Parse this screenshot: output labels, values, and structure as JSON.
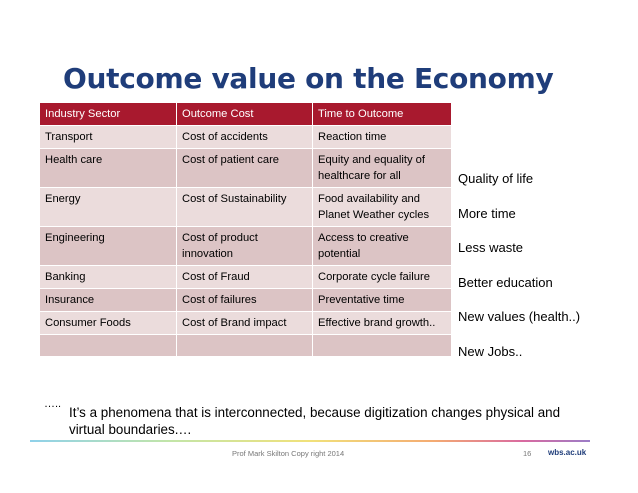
{
  "slide": {
    "title": "Outcome value on the Economy",
    "table": {
      "headers": [
        "Industry Sector",
        "Outcome Cost",
        "Time to Outcome"
      ],
      "rows": [
        [
          "Transport",
          "Cost of accidents",
          "Reaction time"
        ],
        [
          "Health care",
          "Cost of patient care",
          "Equity and equality of healthcare for all"
        ],
        [
          "Energy",
          "Cost of Sustainability",
          "Food availability and Planet Weather cycles"
        ],
        [
          "Engineering",
          "Cost of product innovation",
          "Access to creative potential"
        ],
        [
          "Banking",
          "Cost of Fraud",
          "Corporate cycle failure"
        ],
        [
          "Insurance",
          "Cost of failures",
          "Preventative time"
        ],
        [
          "Consumer Foods",
          "Cost of Brand impact",
          "Effective brand growth.."
        ],
        [
          "",
          "",
          ""
        ]
      ]
    },
    "benefits": [
      "Quality of life",
      "More time",
      "Less waste",
      "Better education",
      "New values (health..)",
      "New Jobs.."
    ],
    "ellipsis": "…..",
    "phenomena_text": "It’s a phenomena that is interconnected, because digitization changes physical and virtual boundaries.…",
    "footer": {
      "credit": "Prof Mark Skilton Copy right 2014",
      "page_number": "16",
      "site": "wbs.ac.uk"
    },
    "colors": {
      "title": "#1f3d7a",
      "header_bg": "#a8192e",
      "row_bg_light": "#ebdcdc",
      "row_bg_dark": "#dcc4c5"
    }
  }
}
